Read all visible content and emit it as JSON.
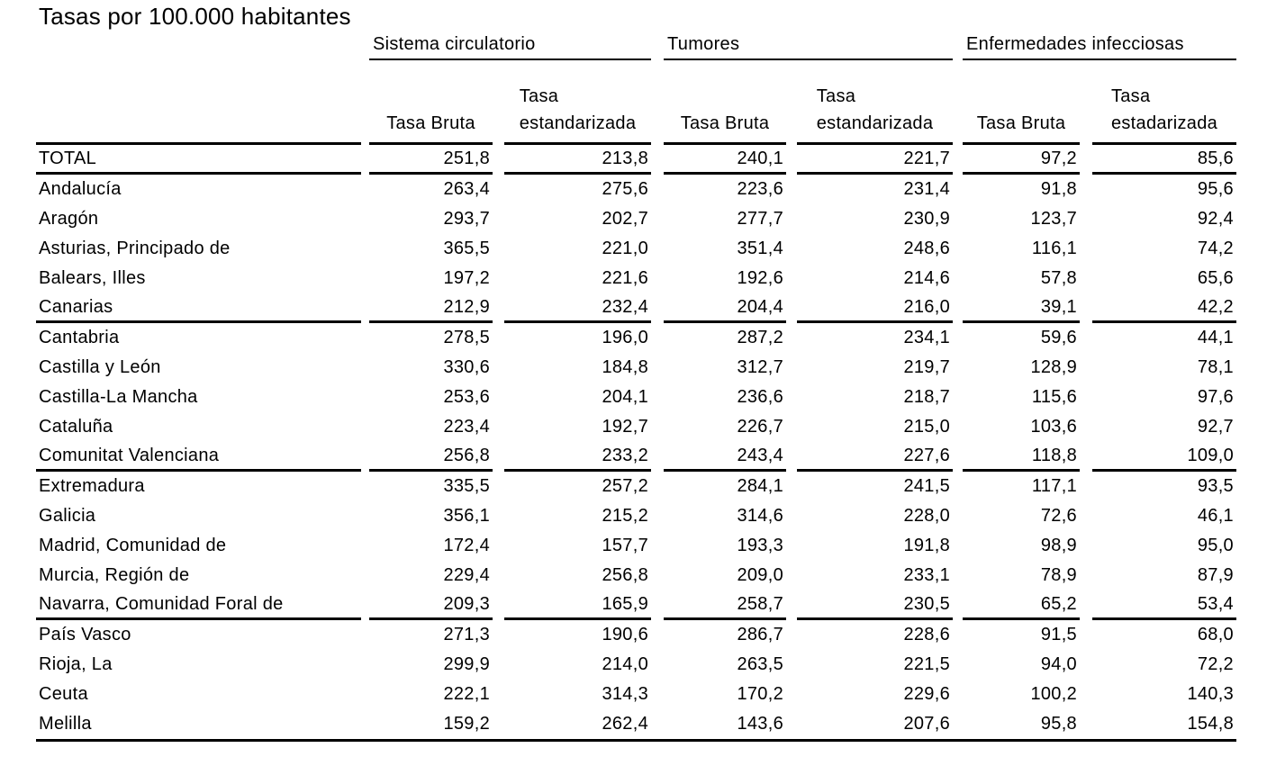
{
  "title": "Tasas por 100.000 habitantes",
  "table": {
    "groups": [
      {
        "label": "Sistema circulatorio"
      },
      {
        "label": "Tumores"
      },
      {
        "label": "Enfermedades infecciosas"
      }
    ],
    "col_headers": [
      "Tasa Bruta",
      "Tasa\nestandarizada",
      "Tasa Bruta",
      "Tasa\nestandarizada",
      "Tasa Bruta",
      "Tasa\nestadarizada"
    ],
    "rows": [
      {
        "name": "TOTAL",
        "values": [
          "251,8",
          "213,8",
          "240,1",
          "221,7",
          "97,2",
          "85,6"
        ]
      },
      {
        "name": "Andalucía",
        "values": [
          "263,4",
          "275,6",
          "223,6",
          "231,4",
          "91,8",
          "95,6"
        ]
      },
      {
        "name": "Aragón",
        "values": [
          "293,7",
          "202,7",
          "277,7",
          "230,9",
          "123,7",
          "92,4"
        ]
      },
      {
        "name": "Asturias, Principado de",
        "values": [
          "365,5",
          "221,0",
          "351,4",
          "248,6",
          "116,1",
          "74,2"
        ]
      },
      {
        "name": "Balears, Illes",
        "values": [
          "197,2",
          "221,6",
          "192,6",
          "214,6",
          "57,8",
          "65,6"
        ]
      },
      {
        "name": "Canarias",
        "values": [
          "212,9",
          "232,4",
          "204,4",
          "216,0",
          "39,1",
          "42,2"
        ]
      },
      {
        "name": "Cantabria",
        "values": [
          "278,5",
          "196,0",
          "287,2",
          "234,1",
          "59,6",
          "44,1"
        ]
      },
      {
        "name": "Castilla y León",
        "values": [
          "330,6",
          "184,8",
          "312,7",
          "219,7",
          "128,9",
          "78,1"
        ]
      },
      {
        "name": "Castilla-La Mancha",
        "values": [
          "253,6",
          "204,1",
          "236,6",
          "218,7",
          "115,6",
          "97,6"
        ]
      },
      {
        "name": "Cataluña",
        "values": [
          "223,4",
          "192,7",
          "226,7",
          "215,0",
          "103,6",
          "92,7"
        ]
      },
      {
        "name": "Comunitat Valenciana",
        "values": [
          "256,8",
          "233,2",
          "243,4",
          "227,6",
          "118,8",
          "109,0"
        ]
      },
      {
        "name": "Extremadura",
        "values": [
          "335,5",
          "257,2",
          "284,1",
          "241,5",
          "117,1",
          "93,5"
        ]
      },
      {
        "name": "Galicia",
        "values": [
          "356,1",
          "215,2",
          "314,6",
          "228,0",
          "72,6",
          "46,1"
        ]
      },
      {
        "name": "Madrid, Comunidad de",
        "values": [
          "172,4",
          "157,7",
          "193,3",
          "191,8",
          "98,9",
          "95,0"
        ]
      },
      {
        "name": "Murcia, Región de",
        "values": [
          "229,4",
          "256,8",
          "209,0",
          "233,1",
          "78,9",
          "87,9"
        ]
      },
      {
        "name": "Navarra, Comunidad Foral de",
        "values": [
          "209,3",
          "165,9",
          "258,7",
          "230,5",
          "65,2",
          "53,4"
        ]
      },
      {
        "name": "País Vasco",
        "values": [
          "271,3",
          "190,6",
          "286,7",
          "228,6",
          "91,5",
          "68,0"
        ]
      },
      {
        "name": "Rioja, La",
        "values": [
          "299,9",
          "214,0",
          "263,5",
          "221,5",
          "94,0",
          "72,2"
        ]
      },
      {
        "name": "Ceuta",
        "values": [
          "222,1",
          "314,3",
          "170,2",
          "229,6",
          "100,2",
          "140,3"
        ]
      },
      {
        "name": "Melilla",
        "values": [
          "159,2",
          "262,4",
          "143,6",
          "207,6",
          "95,8",
          "154,8"
        ]
      }
    ]
  },
  "chart_data": {
    "type": "table",
    "title": "Tasas por 100.000 habitantes",
    "column_groups": [
      "Sistema circulatorio",
      "Tumores",
      "Enfermedades infecciosas"
    ],
    "columns": [
      "Sistema circulatorio - Tasa Bruta",
      "Sistema circulatorio - Tasa estandarizada",
      "Tumores - Tasa Bruta",
      "Tumores - Tasa estandarizada",
      "Enfermedades infecciosas - Tasa Bruta",
      "Enfermedades infecciosas - Tasa estadarizada"
    ],
    "rows": [
      {
        "name": "TOTAL",
        "values": [
          251.8,
          213.8,
          240.1,
          221.7,
          97.2,
          85.6
        ]
      },
      {
        "name": "Andalucía",
        "values": [
          263.4,
          275.6,
          223.6,
          231.4,
          91.8,
          95.6
        ]
      },
      {
        "name": "Aragón",
        "values": [
          293.7,
          202.7,
          277.7,
          230.9,
          123.7,
          92.4
        ]
      },
      {
        "name": "Asturias, Principado de",
        "values": [
          365.5,
          221.0,
          351.4,
          248.6,
          116.1,
          74.2
        ]
      },
      {
        "name": "Balears, Illes",
        "values": [
          197.2,
          221.6,
          192.6,
          214.6,
          57.8,
          65.6
        ]
      },
      {
        "name": "Canarias",
        "values": [
          212.9,
          232.4,
          204.4,
          216.0,
          39.1,
          42.2
        ]
      },
      {
        "name": "Cantabria",
        "values": [
          278.5,
          196.0,
          287.2,
          234.1,
          59.6,
          44.1
        ]
      },
      {
        "name": "Castilla y León",
        "values": [
          330.6,
          184.8,
          312.7,
          219.7,
          128.9,
          78.1
        ]
      },
      {
        "name": "Castilla-La Mancha",
        "values": [
          253.6,
          204.1,
          236.6,
          218.7,
          115.6,
          97.6
        ]
      },
      {
        "name": "Cataluña",
        "values": [
          223.4,
          192.7,
          226.7,
          215.0,
          103.6,
          92.7
        ]
      },
      {
        "name": "Comunitat Valenciana",
        "values": [
          256.8,
          233.2,
          243.4,
          227.6,
          118.8,
          109.0
        ]
      },
      {
        "name": "Extremadura",
        "values": [
          335.5,
          257.2,
          284.1,
          241.5,
          117.1,
          93.5
        ]
      },
      {
        "name": "Galicia",
        "values": [
          356.1,
          215.2,
          314.6,
          228.0,
          72.6,
          46.1
        ]
      },
      {
        "name": "Madrid, Comunidad de",
        "values": [
          172.4,
          157.7,
          193.3,
          191.8,
          98.9,
          95.0
        ]
      },
      {
        "name": "Murcia, Región de",
        "values": [
          229.4,
          256.8,
          209.0,
          233.1,
          78.9,
          87.9
        ]
      },
      {
        "name": "Navarra, Comunidad Foral de",
        "values": [
          209.3,
          165.9,
          258.7,
          230.5,
          65.2,
          53.4
        ]
      },
      {
        "name": "País Vasco",
        "values": [
          271.3,
          190.6,
          286.7,
          228.6,
          91.5,
          68.0
        ]
      },
      {
        "name": "Rioja, La",
        "values": [
          299.9,
          214.0,
          263.5,
          221.5,
          94.0,
          72.2
        ]
      },
      {
        "name": "Ceuta",
        "values": [
          222.1,
          314.3,
          170.2,
          229.6,
          100.2,
          140.3
        ]
      },
      {
        "name": "Melilla",
        "values": [
          159.2,
          262.4,
          143.6,
          207.6,
          95.8,
          154.8
        ]
      }
    ]
  }
}
